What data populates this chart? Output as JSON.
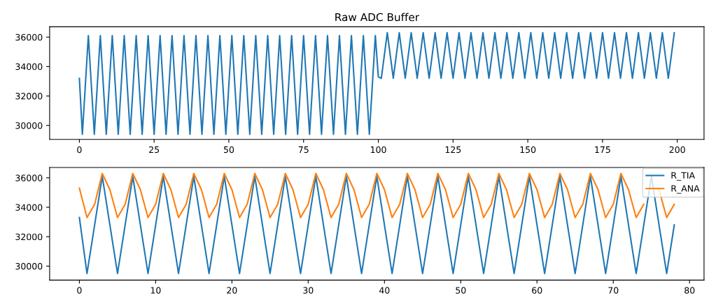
{
  "chart_data": [
    {
      "type": "line",
      "title": "Raw ADC Buffer",
      "x": [
        0,
        1,
        2,
        3,
        4,
        5,
        6,
        7,
        8,
        9,
        10,
        11,
        12,
        13,
        14,
        15,
        16,
        17,
        18,
        19,
        20,
        21,
        22,
        23,
        24,
        25,
        26,
        27,
        28,
        29,
        30,
        31,
        32,
        33,
        34,
        35,
        36,
        37,
        38,
        39,
        40,
        41,
        42,
        43,
        44,
        45,
        46,
        47,
        48,
        49,
        50,
        51,
        52,
        53,
        54,
        55,
        56,
        57,
        58,
        59,
        60,
        61,
        62,
        63,
        64,
        65,
        66,
        67,
        68,
        69,
        70,
        71,
        72,
        73,
        74,
        75,
        76,
        77,
        78,
        79,
        80,
        81,
        82,
        83,
        84,
        85,
        86,
        87,
        88,
        89,
        90,
        91,
        92,
        93,
        94,
        95,
        96,
        97,
        98,
        99,
        100,
        101,
        102,
        103,
        104,
        105,
        106,
        107,
        108,
        109,
        110,
        111,
        112,
        113,
        114,
        115,
        116,
        117,
        118,
        119,
        120,
        121,
        122,
        123,
        124,
        125,
        126,
        127,
        128,
        129,
        130,
        131,
        132,
        133,
        134,
        135,
        136,
        137,
        138,
        139,
        140,
        141,
        142,
        143,
        144,
        145,
        146,
        147,
        148,
        149,
        150,
        151,
        152,
        153,
        154,
        155,
        156,
        157,
        158,
        159,
        160,
        161,
        162,
        163,
        164,
        165,
        166,
        167,
        168,
        169,
        170,
        171,
        172,
        173,
        174,
        175,
        176,
        177,
        178,
        179,
        180,
        181,
        182,
        183,
        184,
        185,
        186,
        187,
        188,
        189,
        190,
        191,
        192,
        193,
        194,
        195,
        196,
        197,
        198,
        199
      ],
      "xlim": [
        -9.95,
        208.95
      ],
      "ylim": [
        29050,
        36700
      ],
      "xticks": [
        0,
        25,
        50,
        75,
        100,
        125,
        150,
        175,
        200
      ],
      "yticks": [
        30000,
        32000,
        34000,
        36000
      ],
      "grid": false,
      "legend": false,
      "series": [
        {
          "color": "#1f77b4",
          "values": [
            33200,
            29400,
            32750,
            36100,
            32750,
            29400,
            32750,
            36100,
            32750,
            29400,
            32750,
            36100,
            32750,
            29400,
            32750,
            36100,
            32750,
            29400,
            32750,
            36100,
            32750,
            29400,
            32750,
            36100,
            32750,
            29400,
            32750,
            36100,
            32750,
            29400,
            32750,
            36100,
            32750,
            29400,
            32750,
            36100,
            32750,
            29400,
            32750,
            36100,
            32750,
            29400,
            32750,
            36100,
            32750,
            29400,
            32750,
            36100,
            32750,
            29400,
            32750,
            36100,
            32750,
            29400,
            32750,
            36100,
            32750,
            29400,
            32750,
            36100,
            32750,
            29400,
            32750,
            36100,
            32750,
            29400,
            32750,
            36100,
            32750,
            29400,
            32750,
            36100,
            32750,
            29400,
            32750,
            36100,
            32750,
            29400,
            32750,
            36100,
            32750,
            29400,
            32750,
            36100,
            32750,
            29400,
            32750,
            36100,
            32750,
            29400,
            32750,
            36100,
            32750,
            29400,
            32750,
            36100,
            32750,
            29400,
            32750,
            36100,
            33300,
            33200,
            34750,
            36300,
            34750,
            33200,
            34750,
            36300,
            34750,
            33200,
            34750,
            36300,
            34750,
            33200,
            34750,
            36300,
            34750,
            33200,
            34750,
            36300,
            34750,
            33200,
            34750,
            36300,
            34750,
            33200,
            34750,
            36300,
            34750,
            33200,
            34750,
            36300,
            34750,
            33200,
            34750,
            36300,
            34750,
            33200,
            34750,
            36300,
            34750,
            33200,
            34750,
            36300,
            34750,
            33200,
            34750,
            36300,
            34750,
            33200,
            34750,
            36300,
            34750,
            33200,
            34750,
            36300,
            34750,
            33200,
            34750,
            36300,
            34750,
            33200,
            34750,
            36300,
            34750,
            33200,
            34750,
            36300,
            34750,
            33200,
            34750,
            36300,
            34750,
            33200,
            34750,
            36300,
            34750,
            33200,
            34750,
            36300,
            34750,
            33200,
            34750,
            36300,
            34750,
            33200,
            34750,
            36300,
            34750,
            33200,
            34750,
            36300,
            34750,
            33200,
            34750,
            36300,
            34750,
            33200,
            34750,
            36300
          ]
        }
      ]
    },
    {
      "type": "line",
      "x": [
        0,
        1,
        2,
        3,
        4,
        5,
        6,
        7,
        8,
        9,
        10,
        11,
        12,
        13,
        14,
        15,
        16,
        17,
        18,
        19,
        20,
        21,
        22,
        23,
        24,
        25,
        26,
        27,
        28,
        29,
        30,
        31,
        32,
        33,
        34,
        35,
        36,
        37,
        38,
        39,
        40,
        41,
        42,
        43,
        44,
        45,
        46,
        47,
        48,
        49,
        50,
        51,
        52,
        53,
        54,
        55,
        56,
        57,
        58,
        59,
        60,
        61,
        62,
        63,
        64,
        65,
        66,
        67,
        68,
        69,
        70,
        71,
        72,
        73,
        74,
        75,
        76,
        77,
        78
      ],
      "xlim": [
        -3.9,
        81.9
      ],
      "ylim": [
        29050,
        36700
      ],
      "xticks": [
        0,
        10,
        20,
        30,
        40,
        50,
        60,
        70,
        80
      ],
      "yticks": [
        30000,
        32000,
        34000,
        36000
      ],
      "grid": false,
      "legend": "top right",
      "series": [
        {
          "name": "R_TIA",
          "color": "#1f77b4",
          "values": [
            33300,
            29500,
            32800,
            36100,
            32800,
            29500,
            32800,
            36100,
            32800,
            29500,
            32800,
            36100,
            32800,
            29500,
            32800,
            36100,
            32800,
            29500,
            32800,
            36100,
            32800,
            29500,
            32800,
            36100,
            32800,
            29500,
            32800,
            36100,
            32800,
            29500,
            32800,
            36100,
            32800,
            29500,
            32800,
            36100,
            32800,
            29500,
            32800,
            36100,
            32800,
            29500,
            32800,
            36100,
            32800,
            29500,
            32800,
            36100,
            32800,
            29500,
            32800,
            36100,
            32800,
            29500,
            32800,
            36100,
            32800,
            29500,
            32800,
            36100,
            32800,
            29500,
            32800,
            36100,
            32800,
            29500,
            32800,
            36100,
            32800,
            29500,
            32800,
            36100,
            32800,
            29500,
            32800,
            36100,
            32800,
            29500,
            32800
          ]
        },
        {
          "name": "R_ANA",
          "color": "#ff7f0e",
          "values": [
            35300,
            33300,
            34200,
            36300,
            35200,
            33300,
            34200,
            36300,
            35200,
            33300,
            34200,
            36300,
            35200,
            33300,
            34200,
            36300,
            35200,
            33300,
            34200,
            36300,
            35200,
            33300,
            34200,
            36300,
            35200,
            33300,
            34200,
            36300,
            35200,
            33300,
            34200,
            36300,
            35200,
            33300,
            34200,
            36300,
            35200,
            33300,
            34200,
            36300,
            35200,
            33300,
            34200,
            36300,
            35200,
            33300,
            34200,
            36300,
            35200,
            33300,
            34200,
            36300,
            35200,
            33300,
            34200,
            36300,
            35200,
            33300,
            34200,
            36300,
            35200,
            33300,
            34200,
            36300,
            35200,
            33300,
            34200,
            36300,
            35200,
            33300,
            34200,
            36300,
            35200,
            33300,
            34200,
            null,
            35200,
            33300,
            34200
          ]
        }
      ]
    }
  ]
}
